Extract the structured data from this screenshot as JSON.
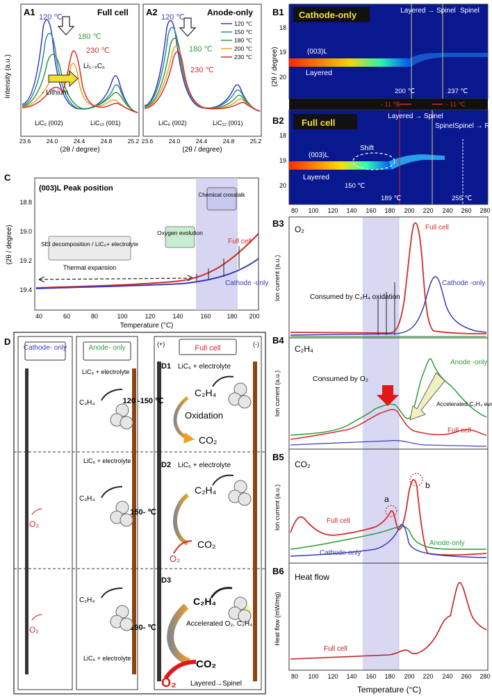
{
  "colors": {
    "blue": "#3a3ab8",
    "red": "#d42a2a",
    "green": "#2e9a3a",
    "orange": "#e8a020",
    "yellow": "#e8d020",
    "purpleband": "#c8c8ee",
    "black": "#111111",
    "heat": "#c02020"
  },
  "panelA1": {
    "tag": "A1",
    "title": "Full cell",
    "ylabel": "Intensity (a.u.)",
    "xlabel": "(2θ / degree)",
    "xticks": [
      "23.6",
      "24.0",
      "24.4",
      "24.8",
      "25.2"
    ],
    "ann120": "120 ℃",
    "ann180": "180 ℃",
    "ann230": "230 ℃",
    "li": "Li₁₋ₓC₆",
    "lithium": "- Lithium",
    "lic6": "LiC₆ (002)",
    "lic12": "LiC₁₂ (001)"
  },
  "panelA2": {
    "tag": "A2",
    "title": "Anode-only",
    "xlabel": "(2θ / degree)",
    "xticks": [
      "23.6",
      "24.0",
      "24.4",
      "24.8",
      "25.2"
    ],
    "ann120": "120 ℃",
    "ann180": "180 ℃",
    "ann230": "230 ℃",
    "lic6": "LiC₆ (002)",
    "lic12": "LiC₁₂ (001)",
    "legend": [
      "120 ℃",
      "150 ℃",
      "180 ℃",
      "200 ℃",
      "230 ℃"
    ]
  },
  "panelB1": {
    "tag": "B1",
    "title": "Cathode-only",
    "ylabel": "(2θ / degree)",
    "yticks": [
      "18",
      "19",
      "20"
    ],
    "layered": "Layered",
    "l003": "(003)L",
    "trans": "Layered → Spinel",
    "spinel": "Spinel",
    "t1": "200 ℃",
    "t2": "237 ℃"
  },
  "midbar": {
    "d1": "- 11 ℃",
    "d2": "- 11 ℃"
  },
  "panelB2": {
    "tag": "B2",
    "title": "Full cell",
    "yticks": [
      "18",
      "19",
      "20"
    ],
    "l003": "(003)L",
    "shift": "Shift",
    "layered": "Layered",
    "t150": "150 ℃",
    "trans": "Layered → Spinel",
    "spinel": "Spinel",
    "spinelrs": "Spinel → R.S.",
    "t189": "189 ℃",
    "t255": "255 ℃",
    "xticks": [
      "80",
      "100",
      "120",
      "140",
      "160",
      "180",
      "200",
      "220",
      "240",
      "260",
      "280"
    ]
  },
  "panelC": {
    "tag": "C",
    "title": "(003)L Peak position",
    "ylabel": "(2θ / degree)",
    "xlabel": "Temperature (°C)",
    "yticks": [
      "18.8",
      "19.0",
      "19.2",
      "19.4"
    ],
    "xticks": [
      "40",
      "60",
      "80",
      "100",
      "120",
      "140",
      "160",
      "180",
      "200"
    ],
    "sei": "SEI decomposition / LiC₆+ electrolyte",
    "thermal": "Thermal expansion",
    "oxygen": "Oxygen evolution",
    "chem": "Chemical crosstalk",
    "full": "Full cell",
    "cathode": "Cathode -only"
  },
  "panelD": {
    "tag": "D",
    "cathode": "Cathode- only",
    "anode": "Anode- only",
    "full": "Full cell",
    "plus": "(+)",
    "minus": "(-)",
    "d1": "D1",
    "d2": "D2",
    "d3": "D3",
    "lic6e": "LiC₆ + electrolyte",
    "lic6e2": "LiC₆ + electrolyte",
    "c2h4": "C₂H₄",
    "co2": "CO₂",
    "o2": "O₂",
    "t1": "120 -150 ℃",
    "t2": "150- ℃",
    "t3": "190- ℃",
    "oxidation": "Oxidation",
    "accel": "Accelerated O₂, C₂H₄",
    "layspin": "Layered→Spinel"
  },
  "panelB3": {
    "tag": "B3",
    "gas": "O₂",
    "ylabel": "Ion current (a.u.)",
    "full": "Full cell",
    "cathode": "Cathode -only",
    "consumed": "Consumed by C₂H₄ oxidation"
  },
  "panelB4": {
    "tag": "B4",
    "gas": "C₂H₄",
    "ylabel": "Ion current (a.u.)",
    "consumed": "Consumed by O₂",
    "anode": "Anode -only",
    "accel": "Accelerated C₂H₄ evolution",
    "full": "Full cell"
  },
  "panelB5": {
    "tag": "B5",
    "gas": "CO₂",
    "ylabel": "Ion current (a.u.)",
    "a": "a",
    "b": "b",
    "full": "Full cell",
    "anode": "Anode-only",
    "cathode": "Cathode-only"
  },
  "panelB6": {
    "tag": "B6",
    "title": "Heat flow",
    "ylabel": "Heat flow (mW/mg)",
    "full": "Full cell",
    "xlabel": "Temperature (°C)",
    "xticks": [
      "80",
      "100",
      "120",
      "140",
      "160",
      "180",
      "200",
      "220",
      "240",
      "260",
      "280"
    ]
  }
}
